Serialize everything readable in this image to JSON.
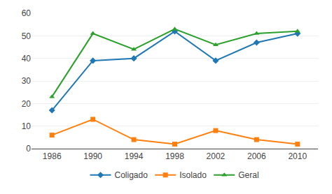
{
  "chart_data": {
    "type": "line",
    "x": [
      1986,
      1990,
      1994,
      1998,
      2002,
      2006,
      2010
    ],
    "series": [
      {
        "name": "Coligado",
        "values": [
          17,
          39,
          40,
          52,
          39,
          47,
          51
        ],
        "marker": "diamond"
      },
      {
        "name": "Isolado",
        "values": [
          6,
          13,
          4,
          2,
          8,
          4,
          2
        ],
        "marker": "square"
      },
      {
        "name": "Geral",
        "values": [
          23,
          51,
          44,
          53,
          46,
          51,
          52
        ],
        "marker": "triangle-up"
      }
    ],
    "xlim": [
      1984,
      2012
    ],
    "xticks": [
      1986,
      1990,
      1994,
      1998,
      2002,
      2006,
      2010
    ],
    "ylim": [
      0,
      60
    ],
    "yticks": [
      0,
      10,
      20,
      30,
      40,
      50,
      60
    ],
    "grid": true,
    "legend": "lower center"
  }
}
